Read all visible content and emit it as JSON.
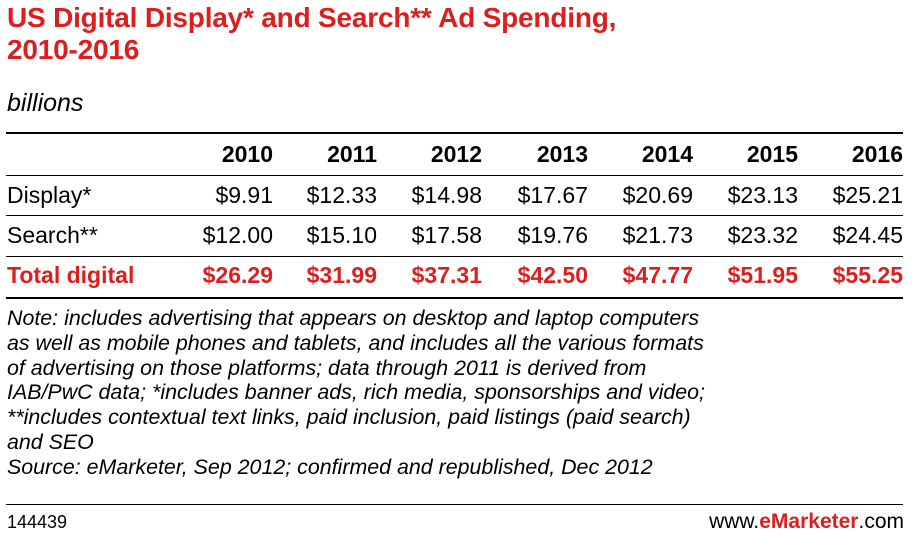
{
  "header": {
    "title_line1": "US Digital Display* and Search** Ad Spending,",
    "title_line2": "2010-2016",
    "subtitle": "billions"
  },
  "chart_data": {
    "type": "table",
    "title": "US Digital Display* and Search** Ad Spending, 2010-2016",
    "subtitle": "billions",
    "columns": [
      "2010",
      "2011",
      "2012",
      "2013",
      "2014",
      "2015",
      "2016"
    ],
    "rows": [
      {
        "label": "Display*",
        "values": [
          9.91,
          12.33,
          14.98,
          17.67,
          20.69,
          23.13,
          25.21
        ],
        "display": [
          "$9.91",
          "$12.33",
          "$14.98",
          "$17.67",
          "$20.69",
          "$23.13",
          "$25.21"
        ]
      },
      {
        "label": "Search**",
        "values": [
          12.0,
          15.1,
          17.58,
          19.76,
          21.73,
          23.32,
          24.45
        ],
        "display": [
          "$12.00",
          "$15.10",
          "$17.58",
          "$19.76",
          "$21.73",
          "$23.32",
          "$24.45"
        ]
      },
      {
        "label": "Total digital",
        "values": [
          26.29,
          31.99,
          37.31,
          42.5,
          47.77,
          51.95,
          55.25
        ],
        "display": [
          "$26.29",
          "$31.99",
          "$37.31",
          "$42.50",
          "$47.77",
          "$51.95",
          "$55.25"
        ],
        "highlight_color": "#dc1e1e"
      }
    ]
  },
  "note_lines": [
    "Note: includes advertising that appears on desktop and laptop computers",
    "as well as mobile phones and tablets, and includes all the various formats",
    "of advertising on those platforms; data through 2011 is derived from",
    "IAB/PwC data; *includes banner ads, rich media, sponsorships and video;",
    "**includes contextual text links, paid inclusion, paid listings (paid search)",
    "and SEO",
    "Source: eMarketer, Sep 2012; confirmed and republished, Dec 2012"
  ],
  "footer": {
    "chart_id": "144439",
    "brand_prefix": "www.",
    "brand_name": "eMarketer",
    "brand_suffix": ".com"
  },
  "colors": {
    "accent": "#dc1e1e",
    "text": "#000000",
    "background": "#ffffff"
  }
}
